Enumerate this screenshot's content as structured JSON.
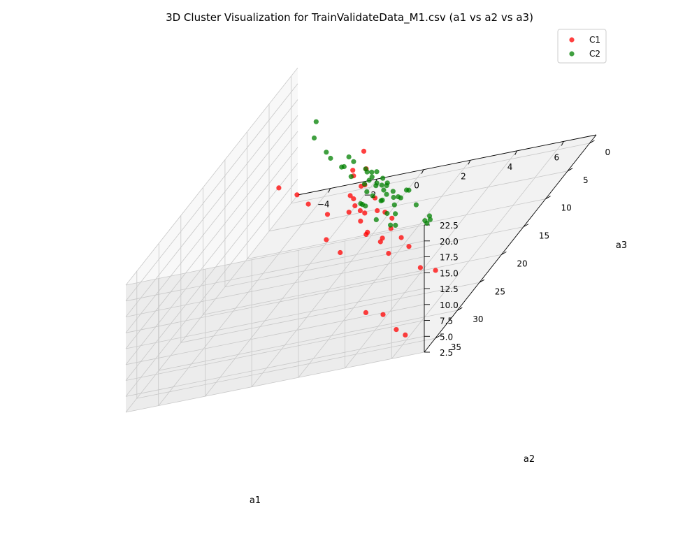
{
  "chart_data": {
    "type": "scatter-3d",
    "title": "3D Cluster Visualization for TrainValidateData_M1.csv (a1 vs a2 vs a3)",
    "xlabel": "a1",
    "ylabel": "a2",
    "zlabel": "a3",
    "xticks": [
      "−4",
      "−2",
      "0",
      "2",
      "4",
      "6"
    ],
    "yticks": [
      "0",
      "5",
      "10",
      "15",
      "20",
      "25",
      "30",
      "35"
    ],
    "zticks": [
      "2.5",
      "5.0",
      "7.5",
      "10.0",
      "12.5",
      "15.0",
      "17.5",
      "20.0",
      "22.5"
    ],
    "xlim": [
      -5.4,
      7.4
    ],
    "ylim": [
      -1.5,
      37.5
    ],
    "zlim": [
      2.5,
      22.5
    ],
    "grid": true,
    "legend_position": "top-right",
    "series": [
      {
        "name": "C1",
        "color": "#ff0000",
        "points": [
          [
            -1.9,
            21.3,
            21.0
          ],
          [
            -0.8,
            23.0,
            20.6
          ],
          [
            0.1,
            25.2,
            20.4
          ],
          [
            1.4,
            28.0,
            16.3
          ],
          [
            2.3,
            29.6,
            15.0
          ],
          [
            -0.1,
            19.8,
            14.2
          ],
          [
            4.8,
            37.0,
            10.2
          ],
          [
            5.5,
            36.8,
            9.2
          ],
          [
            5.8,
            35.4,
            5.4
          ],
          [
            6.3,
            36.0,
            4.7
          ],
          [
            -1.0,
            9.3,
            12.6
          ],
          [
            0.5,
            18.1,
            12.6
          ],
          [
            0.8,
            16.1,
            10.5
          ],
          [
            1.5,
            19.5,
            9.6
          ],
          [
            2.4,
            21.0,
            9.1
          ],
          [
            -0.4,
            12.3,
            10.3
          ],
          [
            0.4,
            15.0,
            10.2
          ],
          [
            -0.9,
            10.4,
            9.5
          ],
          [
            -0.3,
            12.5,
            9.3
          ],
          [
            0.6,
            16.0,
            9.3
          ],
          [
            1.2,
            17.6,
            8.5
          ],
          [
            2.2,
            19.5,
            8.5
          ],
          [
            2.9,
            21.8,
            7.6
          ],
          [
            -1.4,
            7.0,
            10.0
          ],
          [
            -0.7,
            9.0,
            9.6
          ],
          [
            -0.9,
            7.1,
            8.3
          ],
          [
            0.2,
            10.6,
            8.5
          ],
          [
            1.7,
            14.7,
            7.8
          ],
          [
            2.5,
            16.8,
            6.0
          ],
          [
            3.3,
            19.3,
            6.2
          ],
          [
            4.3,
            22.0,
            4.5
          ],
          [
            4.8,
            21.2,
            3.0
          ],
          [
            0.6,
            12.2,
            7.6
          ],
          [
            0.8,
            11.5,
            6.6
          ],
          [
            1.6,
            14.4,
            6.0
          ],
          [
            -1.5,
            3.6,
            8.2
          ],
          [
            -2.0,
            1.5,
            9.5
          ]
        ]
      },
      {
        "name": "C2",
        "color": "#008000",
        "points": [
          [
            -3.8,
            2.8,
            16.6
          ],
          [
            -3.8,
            0.5,
            9.8
          ],
          [
            -4.6,
            -1.0,
            11.3
          ],
          [
            -3.9,
            -1.0,
            7.6
          ],
          [
            -1.8,
            7.6,
            12.2
          ],
          [
            -2.3,
            3.3,
            10.4
          ],
          [
            -1.6,
            6.5,
            9.6
          ],
          [
            0.7,
            16.5,
            12.4
          ],
          [
            0.0,
            12.4,
            9.2
          ],
          [
            -1.6,
            3.2,
            7.9
          ],
          [
            -1.1,
            6.1,
            7.7
          ],
          [
            -0.7,
            7.7,
            7.6
          ],
          [
            -0.4,
            9.6,
            6.8
          ],
          [
            0.5,
            11.9,
            6.0
          ],
          [
            1.6,
            14.5,
            6.6
          ],
          [
            -1.3,
            4.0,
            6.6
          ],
          [
            -0.6,
            6.9,
            6.2
          ],
          [
            0.1,
            8.4,
            6.3
          ],
          [
            0.7,
            10.5,
            5.6
          ],
          [
            -0.4,
            4.8,
            5.8
          ],
          [
            -0.1,
            6.4,
            5.6
          ],
          [
            0.6,
            8.3,
            5.1
          ],
          [
            1.4,
            12.3,
            4.8
          ],
          [
            -1.7,
            1.3,
            5.8
          ],
          [
            -1.1,
            3.3,
            5.4
          ],
          [
            -0.6,
            4.4,
            4.9
          ],
          [
            0.2,
            6.4,
            4.9
          ],
          [
            -0.2,
            4.4,
            4.4
          ],
          [
            -0.8,
            2.5,
            4.5
          ],
          [
            0.3,
            5.3,
            3.8
          ],
          [
            -2.2,
            -0.3,
            4.8
          ],
          [
            -1.8,
            0.7,
            4.6
          ],
          [
            -1.3,
            0.9,
            4.2
          ],
          [
            -3.1,
            -2.0,
            5.6
          ],
          [
            -1.9,
            -0.9,
            4.1
          ],
          [
            1.4,
            7.6,
            3.9
          ],
          [
            2.5,
            10.4,
            3.8
          ],
          [
            0.0,
            2.4,
            2.7
          ],
          [
            0.1,
            2.4,
            2.6
          ],
          [
            2.2,
            9.4,
            2.0
          ],
          [
            -4.0,
            -4.6,
            3.2
          ],
          [
            -1.3,
            1.3,
            1.0
          ],
          [
            -0.1,
            4.4,
            0.8
          ],
          [
            -2.2,
            -2.3,
            0.9
          ],
          [
            -1.0,
            -1.0,
            -0.6
          ],
          [
            -2.1,
            -3.1,
            0.2
          ],
          [
            1.3,
            5.1,
            -0.7
          ],
          [
            1.6,
            5.5,
            -0.4
          ]
        ]
      }
    ]
  }
}
